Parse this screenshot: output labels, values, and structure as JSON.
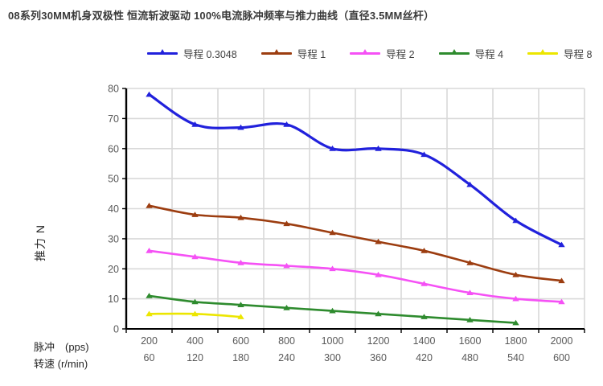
{
  "title": "08系列30MM机身双极性 恒流斩波驱动 100%电流脉冲频率与推力曲线（直径3.5MM丝杆）",
  "chart_data": {
    "type": "line",
    "title": "08系列30MM机身双极性 恒流斩波驱动 100%电流脉冲频率与推力曲线（直径3.5MM丝杆）",
    "grid": true,
    "legend_position": "top",
    "x_axis": {
      "row1_label": "脉冲　(pps)",
      "row2_label": "转速 (r/min)",
      "pulse_pps": [
        200,
        400,
        600,
        800,
        1000,
        1200,
        1400,
        1600,
        1800,
        2000
      ],
      "speed_rpm": [
        60,
        120,
        180,
        240,
        300,
        360,
        420,
        480,
        540,
        600
      ]
    },
    "y_axis": {
      "label": "推力 N",
      "min": 0,
      "max": 80,
      "step": 10,
      "ticks": [
        0,
        10,
        20,
        30,
        40,
        50,
        60,
        70,
        80
      ]
    },
    "series": [
      {
        "name": "导程 0.3048",
        "color": "#2121dc",
        "values": [
          78,
          68,
          67,
          68,
          60,
          60,
          58,
          48,
          36,
          28
        ]
      },
      {
        "name": "导程 1",
        "color": "#9c3d10",
        "values": [
          41,
          38,
          37,
          35,
          32,
          29,
          26,
          22,
          18,
          16
        ]
      },
      {
        "name": "导程 2",
        "color": "#f551f5",
        "values": [
          26,
          24,
          22,
          21,
          20,
          18,
          15,
          12,
          10,
          9
        ]
      },
      {
        "name": "导程 4",
        "color": "#2e8b2e",
        "values": [
          11,
          9,
          8,
          7,
          6,
          5,
          4,
          3,
          2,
          null
        ]
      },
      {
        "name": "导程 8",
        "color": "#ece600",
        "values": [
          5,
          5,
          4,
          null,
          null,
          null,
          null,
          null,
          null,
          null
        ]
      }
    ],
    "colors": {
      "gridline": "#d9d9d9",
      "axis": "#000000",
      "tick_text": "#595959"
    }
  }
}
